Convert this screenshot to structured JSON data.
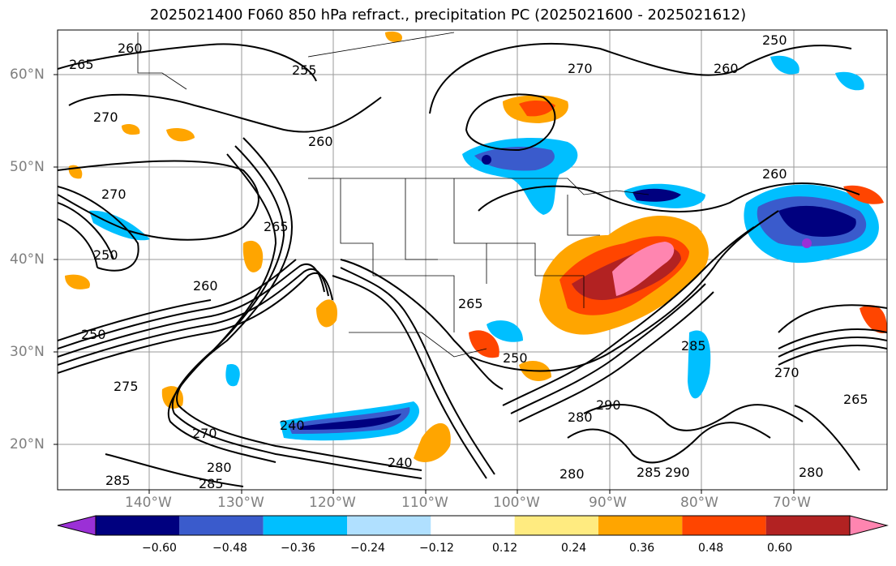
{
  "title": "2025021400 F060 850 hPa refract., precipitation PC (2025021600 - 2025021612)",
  "map": {
    "lat_ticks": [
      "60°N",
      "50°N",
      "40°N",
      "30°N",
      "20°N"
    ],
    "lon_ticks": [
      "140°W",
      "130°W",
      "120°W",
      "110°W",
      "100°W",
      "90°W",
      "80°W",
      "70°W"
    ],
    "contour_labels": [
      "265",
      "260",
      "255",
      "270",
      "260",
      "250",
      "270",
      "270",
      "260",
      "265",
      "250",
      "260",
      "250",
      "265",
      "250",
      "260",
      "240",
      "240",
      "270",
      "275",
      "280",
      "285",
      "285",
      "285",
      "280",
      "270",
      "265",
      "290",
      "280",
      "285",
      "290",
      "280"
    ]
  },
  "colorbar": {
    "ticks": [
      "−0.60",
      "−0.48",
      "−0.36",
      "−0.24",
      "−0.12",
      "0.12",
      "0.24",
      "0.36",
      "0.48",
      "0.60"
    ],
    "colors": [
      "#9b30d6",
      "#00007f",
      "#3a5bcc",
      "#00bfff",
      "#b0e0ff",
      "#ffffff",
      "#ffeb80",
      "#ffa500",
      "#ff4500",
      "#b22222",
      "#ff85b0"
    ]
  }
}
